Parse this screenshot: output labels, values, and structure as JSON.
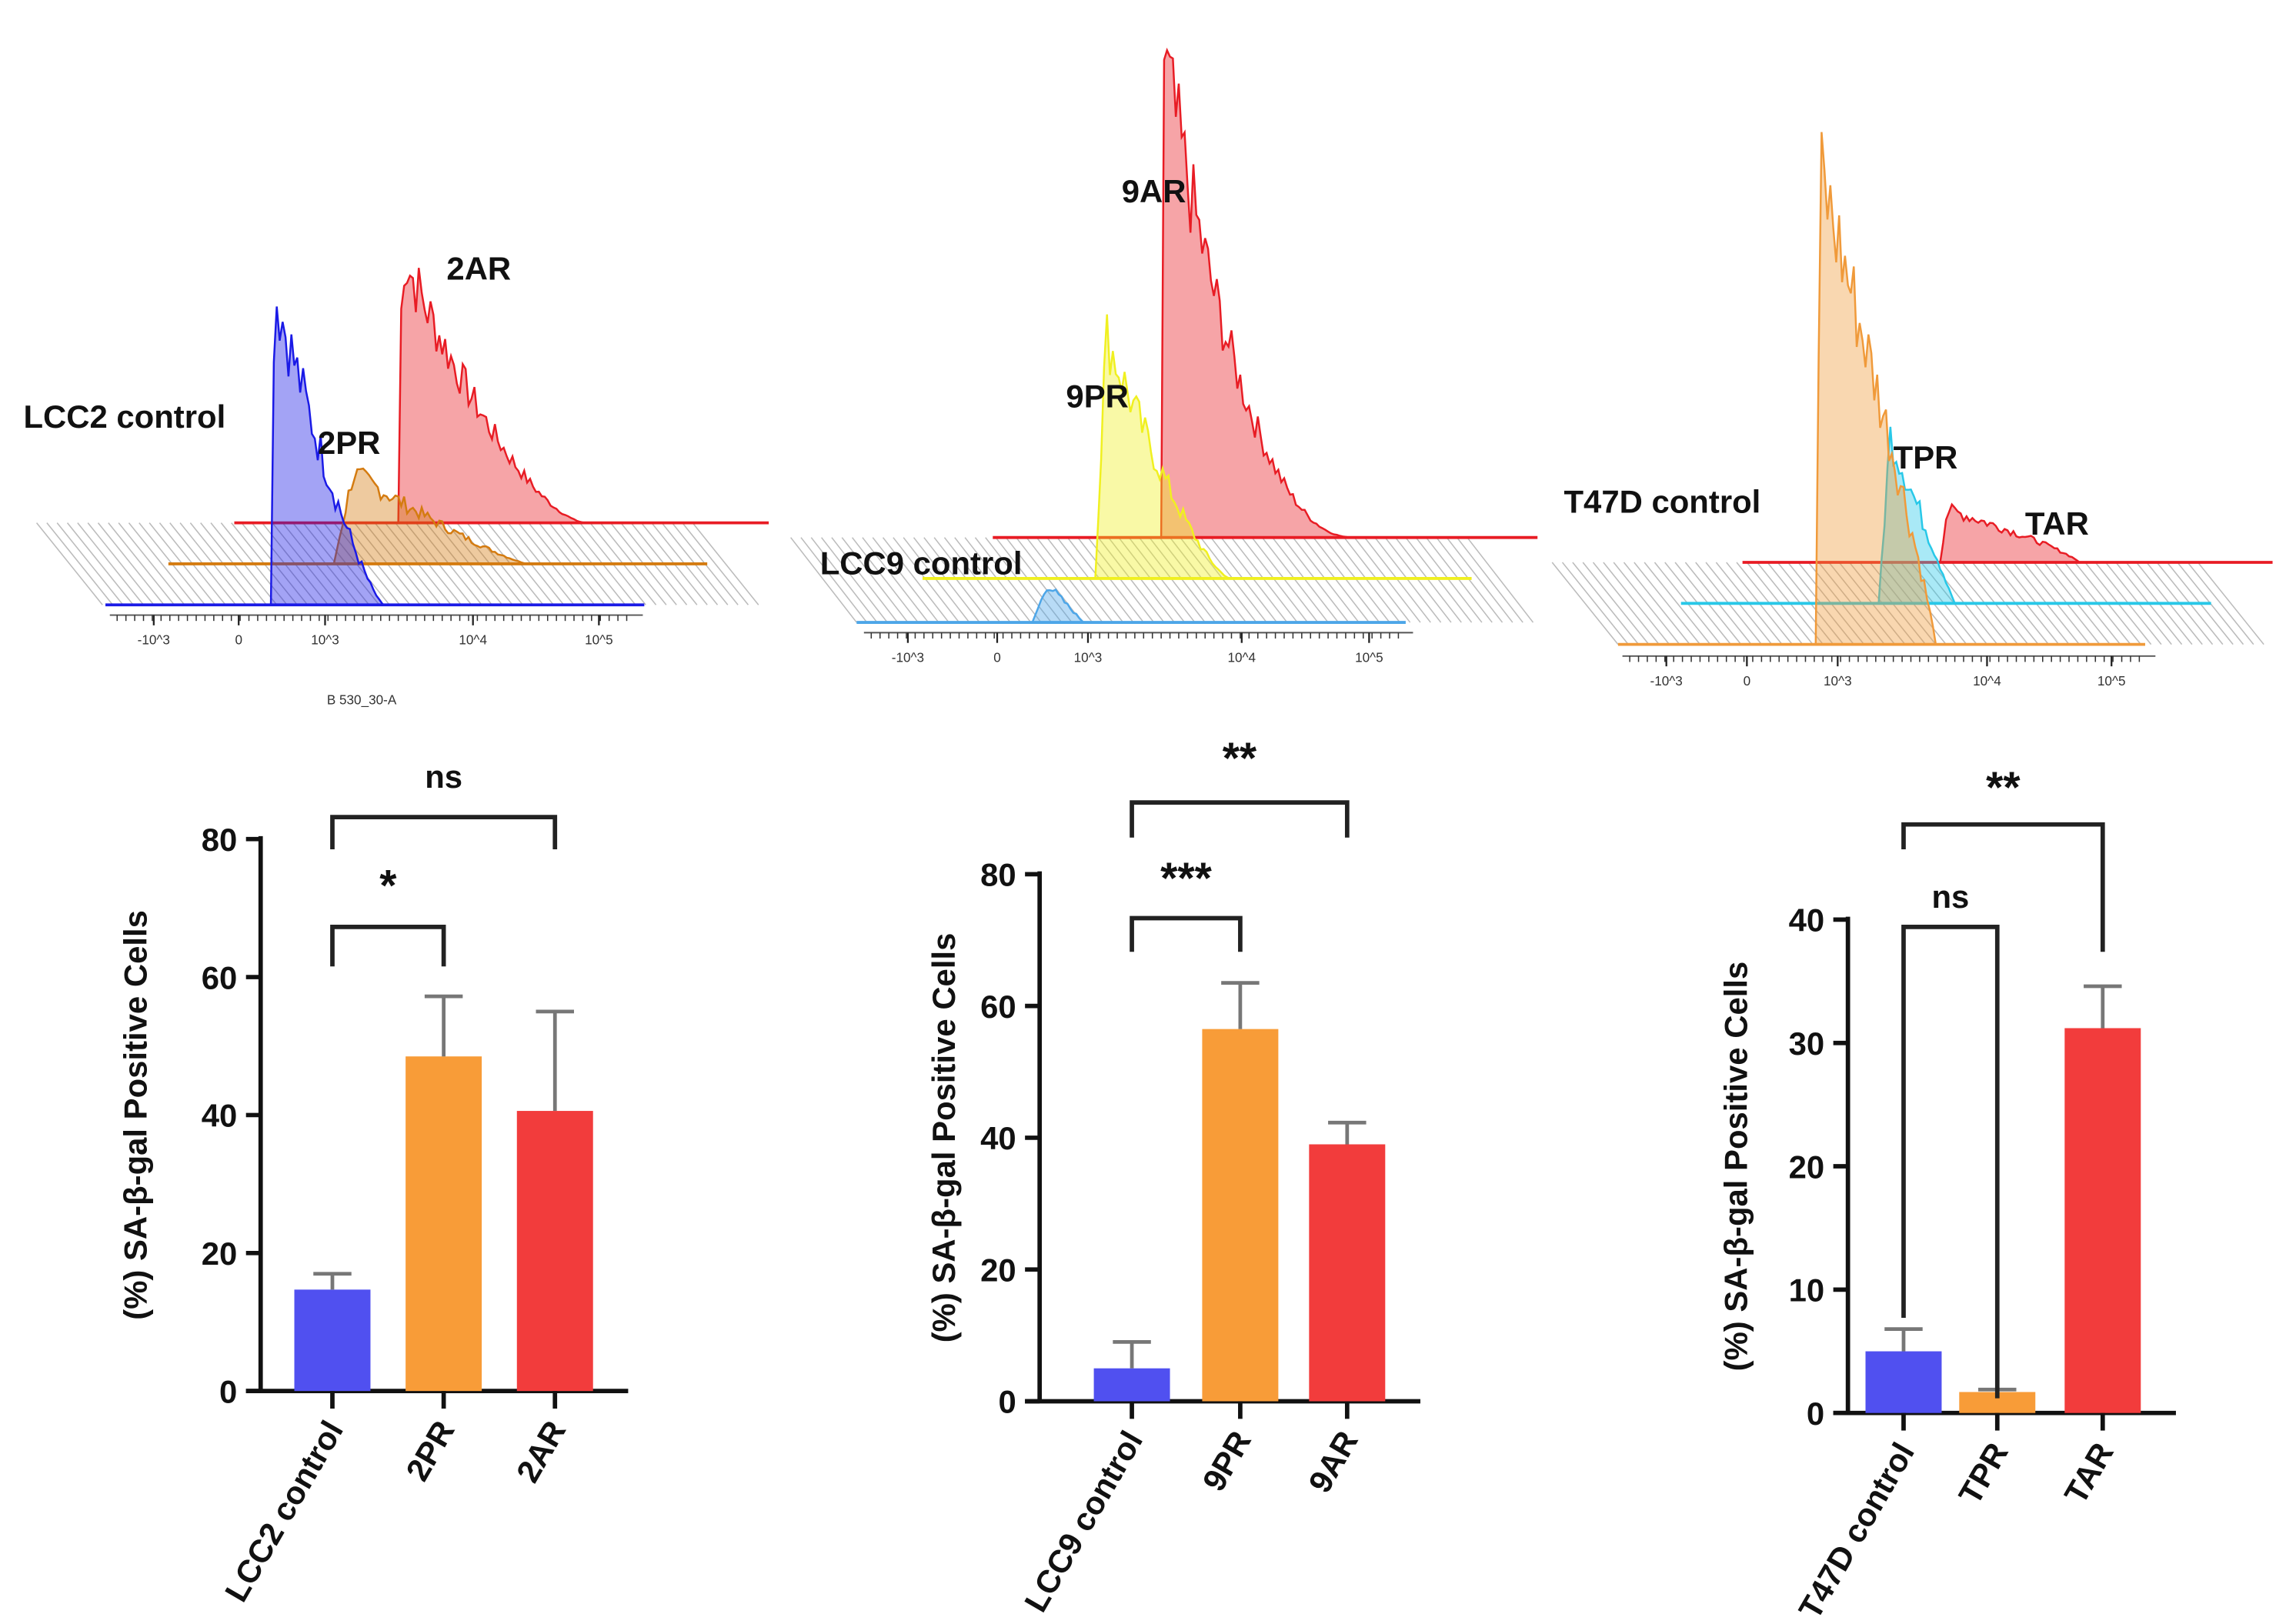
{
  "chart_data": [
    {
      "type": "histogram",
      "title": "",
      "labels": [
        "LCC2 control",
        "2PR",
        "2AR"
      ],
      "colors": [
        "#1a1ae6",
        "#d47b10",
        "#e81c24"
      ],
      "xlabel": "B 530_30-A",
      "x_ticks": [
        "-10^3",
        "0",
        "10^3",
        "10^4",
        "10^5"
      ],
      "x_scale": "biexponential"
    },
    {
      "type": "histogram",
      "title": "",
      "labels": [
        "LCC9 control",
        "9PR",
        "9AR"
      ],
      "colors": [
        "#4da6e8",
        "#f0f020",
        "#e81c24"
      ],
      "xlabel": "",
      "x_ticks": [
        "-10^3",
        "0",
        "10^3",
        "10^4",
        "10^5"
      ],
      "x_scale": "biexponential"
    },
    {
      "type": "histogram",
      "title": "",
      "labels": [
        "T47D control",
        "TPR",
        "TAR"
      ],
      "colors": [
        "#f09a3a",
        "#28c8e8",
        "#e81c24"
      ],
      "xlabel": "",
      "x_ticks": [
        "-10^3",
        "0",
        "10^3",
        "10^4",
        "10^5"
      ],
      "x_scale": "biexponential"
    },
    {
      "type": "bar",
      "categories": [
        "LCC2 control",
        "2PR",
        "2AR"
      ],
      "values": [
        14.7,
        48.5,
        40.6
      ],
      "error_upper": [
        17.0,
        57.2,
        55.0
      ],
      "colors": [
        "#5050f0",
        "#f89c38",
        "#f23c3c"
      ],
      "ylabel": "(%) SA-β-gal Positive Cells",
      "ylim": [
        0,
        80
      ],
      "y_ticks": [
        "0",
        "20",
        "40",
        "60",
        "80"
      ],
      "significance": [
        {
          "pair": [
            "LCC2 control",
            "2PR"
          ],
          "label": "*"
        },
        {
          "pair": [
            "LCC2 control",
            "2AR"
          ],
          "label": "ns"
        }
      ]
    },
    {
      "type": "bar",
      "categories": [
        "LCC9 control",
        "9PR",
        "9AR"
      ],
      "values": [
        5.0,
        56.5,
        39.0
      ],
      "error_upper": [
        9.0,
        63.5,
        42.3
      ],
      "colors": [
        "#5050f0",
        "#f89c38",
        "#f23c3c"
      ],
      "ylabel": "(%) SA-β-gal Positive Cells",
      "ylim": [
        0,
        80
      ],
      "y_ticks": [
        "0",
        "20",
        "40",
        "60",
        "80"
      ],
      "significance": [
        {
          "pair": [
            "LCC9 control",
            "9PR"
          ],
          "label": "***"
        },
        {
          "pair": [
            "LCC9 control",
            "9AR"
          ],
          "label": "**"
        }
      ]
    },
    {
      "type": "bar",
      "categories": [
        "T47D control",
        "TPR",
        "TAR"
      ],
      "values": [
        5.0,
        1.7,
        31.2
      ],
      "error_upper": [
        6.8,
        1.9,
        34.6
      ],
      "colors": [
        "#5050f0",
        "#f89c38",
        "#f23c3c"
      ],
      "ylabel": "(%) SA-β-gal Positive Cells",
      "ylim": [
        0,
        40
      ],
      "y_ticks": [
        "0",
        "10",
        "20",
        "30",
        "40"
      ],
      "significance": [
        {
          "pair": [
            "T47D control",
            "TPR"
          ],
          "label": "ns"
        },
        {
          "pair": [
            "T47D control",
            "TAR"
          ],
          "label": "**"
        }
      ]
    }
  ]
}
